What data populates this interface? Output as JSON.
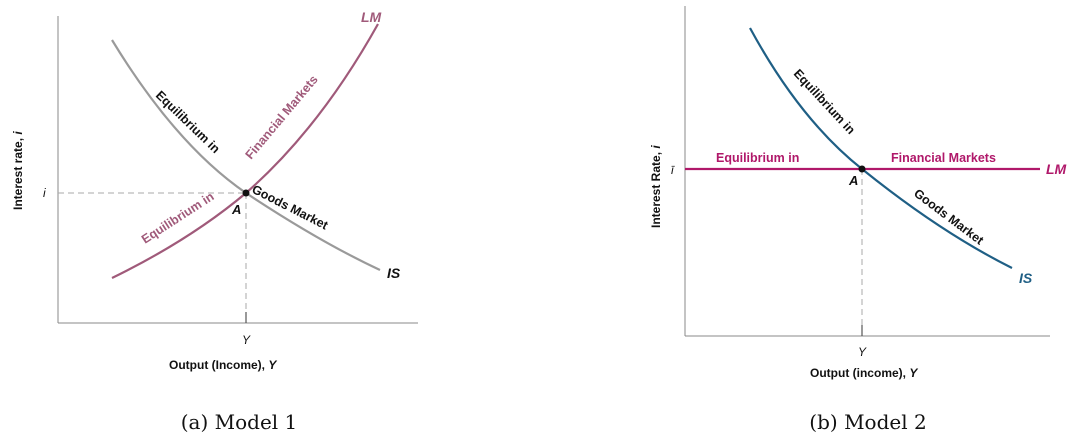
{
  "panels": [
    {
      "caption": "(a) Model 1",
      "y_axis_label": "Interest rate, ",
      "y_axis_var": "i",
      "x_axis_label": "Output (Income), ",
      "x_axis_var": "Y",
      "y_tick": "i",
      "x_tick": "Y",
      "point_label": "A",
      "lm_label": "LM",
      "is_label": "IS",
      "lm_color": "#a05a7a",
      "is_color": "#9a9a9a",
      "text_lm_1": "Financial Markets",
      "text_lm_2": "Equilibrium in",
      "text_is_1": "Equilibrium in",
      "text_is_2": "Goods Market"
    },
    {
      "caption": "(b) Model 2",
      "y_axis_label": "Interest Rate, ",
      "y_axis_var": "i",
      "x_axis_label": "Output (income), ",
      "x_axis_var": "Y",
      "y_tick": "ī",
      "x_tick": "Y",
      "point_label": "A",
      "lm_label": "LM",
      "is_label": "IS",
      "lm_color": "#b0186a",
      "is_color": "#1f5f85",
      "text_lm_1": "Equilibrium in",
      "text_lm_2": "Financial Markets",
      "text_is_1": "Equilibrium in",
      "text_is_2": "Goods Market"
    }
  ]
}
